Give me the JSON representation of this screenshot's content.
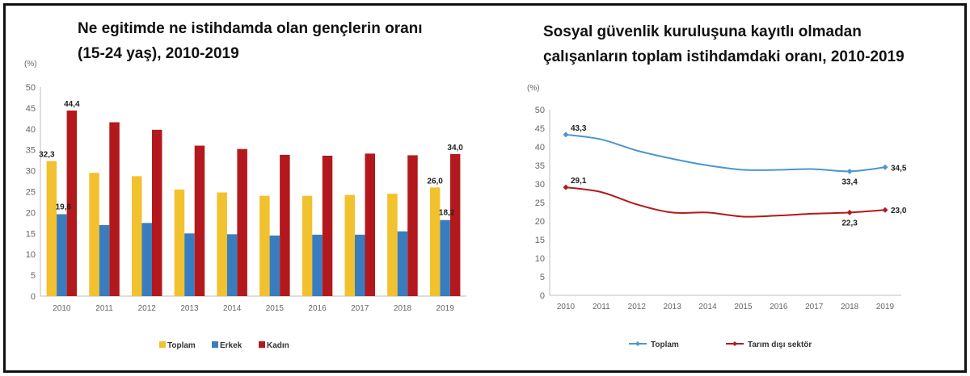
{
  "left_chart": {
    "title_line1": "Ne egitimde ne istihdamda olan gençlerin oranı",
    "title_line2": "(15-24 yaş), 2010-2019"
  },
  "right_chart": {
    "title_line1": "Sosyal güvenlik kuruluşuna kayıtlı olmadan",
    "title_line2": "çalışanların toplam istihdamdaki oranı, 2010-2019"
  },
  "colors": {
    "toplam_bar": "#f2c12e",
    "erkek_bar": "#3a7dbf",
    "kadin_bar": "#b3191c",
    "toplam_line": "#4a97cf",
    "tarim_line": "#b3191c",
    "axis_text": "#666666"
  },
  "chart_data": [
    {
      "type": "bar",
      "title": "Ne egitimde ne istihdamda olan gençlerin oranı (15-24 yaş), 2010-2019",
      "ylabel": "(%)",
      "ylim": [
        0,
        50
      ],
      "yticks": [
        0,
        5,
        10,
        15,
        20,
        25,
        30,
        35,
        40,
        45,
        50
      ],
      "categories": [
        "2010",
        "2011",
        "2012",
        "2013",
        "2014",
        "2015",
        "2016",
        "2017",
        "2018",
        "2019"
      ],
      "series": [
        {
          "name": "Toplam",
          "values": [
            32.3,
            29.5,
            28.7,
            25.5,
            24.8,
            24.0,
            24.0,
            24.2,
            24.5,
            26.0
          ]
        },
        {
          "name": "Erkek",
          "values": [
            19.6,
            17.0,
            17.5,
            15.0,
            14.8,
            14.5,
            14.7,
            14.7,
            15.5,
            18.2
          ]
        },
        {
          "name": "Kadın",
          "values": [
            44.4,
            41.6,
            39.8,
            36.0,
            35.2,
            33.8,
            33.6,
            34.1,
            33.7,
            34.0
          ]
        }
      ],
      "data_labels": [
        {
          "series": 0,
          "index": 0,
          "text": "32,3"
        },
        {
          "series": 1,
          "index": 0,
          "text": "19,6"
        },
        {
          "series": 2,
          "index": 0,
          "text": "44,4"
        },
        {
          "series": 0,
          "index": 9,
          "text": "26,0"
        },
        {
          "series": 1,
          "index": 9,
          "text": "18,2"
        },
        {
          "series": 2,
          "index": 9,
          "text": "34,0"
        }
      ],
      "legend": [
        "Toplam",
        "Erkek",
        "Kadın"
      ],
      "legend_position": "bottom"
    },
    {
      "type": "line",
      "title": "Sosyal güvenlik kuruluşuna kayıtlı olmadan çalışanların toplam istihdamdaki oranı, 2010-2019",
      "ylabel": "(%)",
      "ylim": [
        0,
        50
      ],
      "yticks": [
        0,
        5,
        10,
        15,
        20,
        25,
        30,
        35,
        40,
        45,
        50
      ],
      "x": [
        "2010",
        "2011",
        "2012",
        "2013",
        "2014",
        "2015",
        "2016",
        "2017",
        "2018",
        "2019"
      ],
      "series": [
        {
          "name": "Toplam",
          "values": [
            43.3,
            42.0,
            39.0,
            36.8,
            35.0,
            33.8,
            33.8,
            34.0,
            33.4,
            34.5
          ]
        },
        {
          "name": "Tarım dışı sektör",
          "values": [
            29.1,
            27.8,
            24.5,
            22.3,
            22.3,
            21.2,
            21.5,
            22.0,
            22.3,
            23.0
          ]
        }
      ],
      "data_labels": [
        {
          "series": 0,
          "index": 0,
          "text": "43,3"
        },
        {
          "series": 0,
          "index": 8,
          "text": "33,4"
        },
        {
          "series": 0,
          "index": 9,
          "text": "34,5"
        },
        {
          "series": 1,
          "index": 0,
          "text": "29,1"
        },
        {
          "series": 1,
          "index": 8,
          "text": "22,3"
        },
        {
          "series": 1,
          "index": 9,
          "text": "23,0"
        }
      ],
      "legend": [
        "Toplam",
        "Tarım dışı sektör"
      ],
      "legend_position": "bottom"
    }
  ]
}
